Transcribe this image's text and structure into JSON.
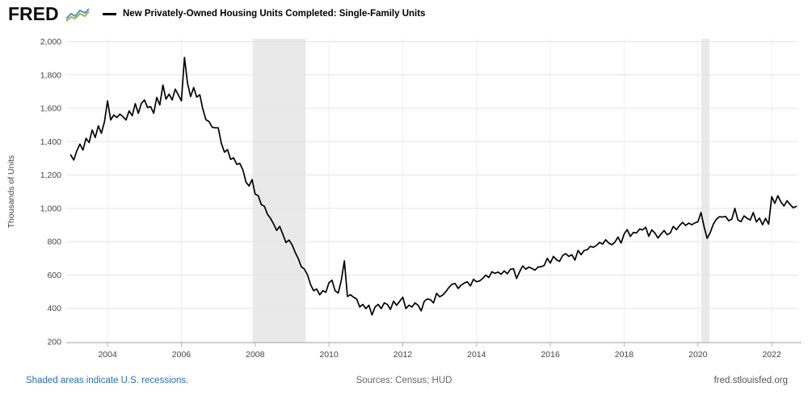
{
  "header": {
    "logo": "FRED",
    "legend_dash": "—",
    "series_title": "New Privately-Owned Housing Units Completed: Single-Family Units"
  },
  "footer": {
    "recessions_note": "Shaded areas indicate U.S. recessions.",
    "sources": "Sources: Census; HUD",
    "site": "fred.stlouisfed.org"
  },
  "colors": {
    "series_line": "#000000",
    "recession_band": "#e9e9e9",
    "h_gridline": "#e4e4e4",
    "v_gridline": "#efefef",
    "axis_line": "#b3b3b3",
    "tick_text": "#444444",
    "link_blue": "#2b6cb3",
    "footer_gray": "#666666",
    "logo_spark_blue": "#5b8db8",
    "logo_spark_green": "#93b554"
  },
  "chart_data": {
    "type": "line",
    "title": "New Privately-Owned Housing Units Completed: Single-Family Units",
    "ylabel": "Thousands of Units",
    "frequency": "monthly",
    "x_start_year": 2003,
    "x_start_month": 1,
    "x_end_year": 2022,
    "x_end_month": 9,
    "xlim": [
      2002.88,
      2022.72
    ],
    "ylim": [
      200,
      2000
    ],
    "grid": true,
    "legend_position": "top-left",
    "x_tick_values": [
      2004,
      2006,
      2008,
      2010,
      2012,
      2014,
      2016,
      2018,
      2020,
      2022
    ],
    "x_tick_labels": [
      "2004",
      "2006",
      "2008",
      "2010",
      "2012",
      "2014",
      "2016",
      "2018",
      "2020",
      "2022"
    ],
    "y_tick_values": [
      200,
      400,
      600,
      800,
      1000,
      1200,
      1400,
      1600,
      1800,
      2000
    ],
    "y_tick_labels": [
      "200",
      "400",
      "600",
      "800",
      "1,000",
      "1,200",
      "1,400",
      "1,600",
      "1,800",
      "2,000"
    ],
    "recessions": [
      {
        "start": 2007.93,
        "end": 2009.37
      },
      {
        "start": 2020.09,
        "end": 2020.31
      }
    ],
    "series": [
      {
        "name": "New Privately-Owned Housing Units Completed: Single-Family Units",
        "color": "#000000",
        "values": [
          1320,
          1290,
          1345,
          1385,
          1350,
          1420,
          1395,
          1470,
          1425,
          1495,
          1450,
          1520,
          1645,
          1530,
          1560,
          1545,
          1565,
          1550,
          1530,
          1585,
          1555,
          1628,
          1570,
          1630,
          1650,
          1605,
          1610,
          1570,
          1665,
          1620,
          1740,
          1655,
          1685,
          1650,
          1715,
          1680,
          1645,
          1905,
          1750,
          1670,
          1725,
          1667,
          1681,
          1594,
          1531,
          1521,
          1487,
          1483,
          1483,
          1391,
          1337,
          1352,
          1294,
          1303,
          1264,
          1270,
          1231,
          1158,
          1134,
          1173,
          1085,
          1076,
          1022,
          1013,
          965,
          940,
          907,
          868,
          892,
          844,
          795,
          810,
          781,
          737,
          699,
          650,
          636,
          602,
          544,
          506,
          516,
          482,
          506,
          497,
          554,
          569,
          506,
          492,
          569,
          685,
          472,
          482,
          467,
          457,
          409,
          424,
          399,
          419,
          361,
          409,
          424,
          399,
          433,
          424,
          394,
          443,
          419,
          443,
          467,
          399,
          419,
          409,
          433,
          419,
          385,
          443,
          457,
          453,
          433,
          490,
          470,
          480,
          500,
          525,
          545,
          550,
          520,
          540,
          552,
          560,
          535,
          575,
          560,
          565,
          580,
          600,
          585,
          620,
          610,
          618,
          605,
          625,
          608,
          635,
          638,
          580,
          620,
          655,
          635,
          648,
          640,
          630,
          648,
          650,
          658,
          700,
          672,
          712,
          692,
          682,
          718,
          728,
          712,
          722,
          690,
          748,
          722,
          748,
          752,
          772,
          767,
          778,
          796,
          786,
          812,
          792,
          782,
          797,
          828,
          792,
          847,
          873,
          832,
          856,
          852,
          876,
          871,
          887,
          833,
          871,
          852,
          822,
          846,
          867,
          842,
          852,
          892,
          872,
          897,
          916,
          897,
          912,
          902,
          913,
          920,
          975,
          890,
          820,
          855,
          905,
          935,
          950,
          948,
          952,
          926,
          935,
          1000,
          930,
          920,
          955,
          940,
          930,
          975,
          918,
          942,
          902,
          940,
          905,
          1070,
          1030,
          1076,
          1038,
          1014,
          1046,
          1022,
          1004,
          1013
        ]
      }
    ]
  }
}
